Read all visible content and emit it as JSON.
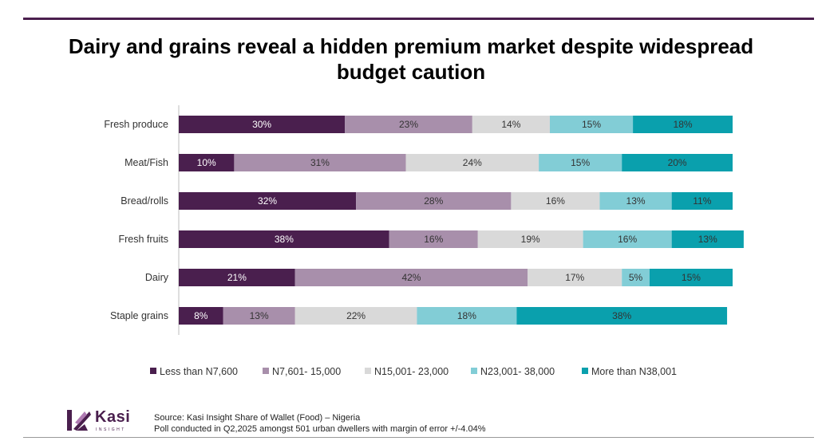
{
  "title": "Dairy and grains reveal a hidden premium market despite widespread budget caution",
  "colors": {
    "rule": "#4a1f4e",
    "series": [
      "#4a1f4e",
      "#a88fab",
      "#d9d9d9",
      "#82cdd6",
      "#0aa0ad"
    ],
    "label_light": "#ffffff",
    "label_dark": "#333333"
  },
  "chart_data": {
    "type": "bar",
    "orientation": "horizontal",
    "stacked": true,
    "title": "Dairy and grains reveal a hidden premium market despite widespread budget caution",
    "categories": [
      "Fresh produce",
      "Meat/Fish",
      "Bread/rolls",
      "Fresh fruits",
      "Dairy",
      "Staple grains"
    ],
    "series": [
      {
        "name": "Less than N7,600",
        "values": [
          30,
          10,
          32,
          38,
          21,
          8
        ]
      },
      {
        "name": "N7,601- 15,000",
        "values": [
          23,
          31,
          28,
          16,
          42,
          13
        ]
      },
      {
        "name": "N15,001- 23,000",
        "values": [
          14,
          24,
          16,
          19,
          17,
          22
        ]
      },
      {
        "name": "N23,001- 38,000",
        "values": [
          15,
          15,
          13,
          16,
          5,
          18
        ]
      },
      {
        "name": "More than  N38,001",
        "values": [
          18,
          20,
          11,
          13,
          15,
          38
        ]
      }
    ],
    "xlim": [
      0,
      100
    ],
    "unit": "%",
    "legend_position": "bottom",
    "grid": false
  },
  "logo": {
    "name": "Kasi",
    "tagline": "INSIGHT"
  },
  "source": {
    "line1": "Source: Kasi Insight Share of Wallet (Food) – Nigeria",
    "line2": "Poll conducted in Q2,2025 amongst  501 urban dwellers with margin of error +/-4.04%"
  }
}
